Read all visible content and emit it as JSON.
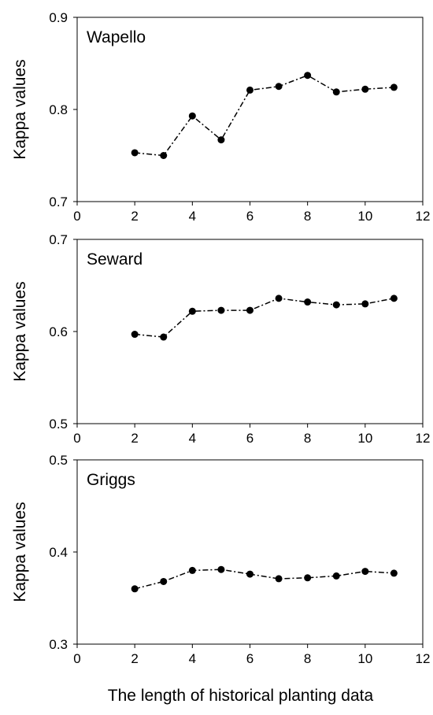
{
  "chart_data": [
    {
      "type": "line",
      "panel_label": "Wapello",
      "ylabel": "Kappa values",
      "xlim": [
        0,
        12
      ],
      "ylim": [
        0.7,
        0.9
      ],
      "xticks": [
        0,
        2,
        4,
        6,
        8,
        10,
        12
      ],
      "yticks": [
        0.7,
        0.8,
        0.9
      ],
      "ytick_labels": [
        "0.7",
        "0.8",
        "0.9"
      ],
      "grid": false,
      "line_style": "dash-dot",
      "marker": "circle",
      "color": "#000000",
      "x": [
        2,
        3,
        4,
        5,
        6,
        7,
        8,
        9,
        10,
        11
      ],
      "y": [
        0.753,
        0.75,
        0.793,
        0.767,
        0.821,
        0.825,
        0.837,
        0.819,
        0.822,
        0.824
      ]
    },
    {
      "type": "line",
      "panel_label": "Seward",
      "ylabel": "Kappa values",
      "xlim": [
        0,
        12
      ],
      "ylim": [
        0.5,
        0.7
      ],
      "xticks": [
        0,
        2,
        4,
        6,
        8,
        10,
        12
      ],
      "yticks": [
        0.5,
        0.6,
        0.7
      ],
      "ytick_labels": [
        "0.5",
        "0.6",
        "0.7"
      ],
      "grid": false,
      "line_style": "dash-dot",
      "marker": "circle",
      "color": "#000000",
      "x": [
        2,
        3,
        4,
        5,
        6,
        7,
        8,
        9,
        10,
        11
      ],
      "y": [
        0.597,
        0.594,
        0.622,
        0.623,
        0.623,
        0.636,
        0.632,
        0.629,
        0.63,
        0.636
      ]
    },
    {
      "type": "line",
      "panel_label": "Griggs",
      "ylabel": "Kappa values",
      "xlabel": "The length of historical planting data",
      "xlim": [
        0,
        12
      ],
      "ylim": [
        0.3,
        0.5
      ],
      "xticks": [
        0,
        2,
        4,
        6,
        8,
        10,
        12
      ],
      "yticks": [
        0.3,
        0.4,
        0.5
      ],
      "ytick_labels": [
        "0.3",
        "0.4",
        "0.5"
      ],
      "grid": false,
      "line_style": "dash-dot",
      "marker": "circle",
      "color": "#000000",
      "x": [
        2,
        3,
        4,
        5,
        6,
        7,
        8,
        9,
        10,
        11
      ],
      "y": [
        0.36,
        0.368,
        0.38,
        0.381,
        0.376,
        0.371,
        0.372,
        0.374,
        0.379,
        0.377
      ]
    }
  ]
}
